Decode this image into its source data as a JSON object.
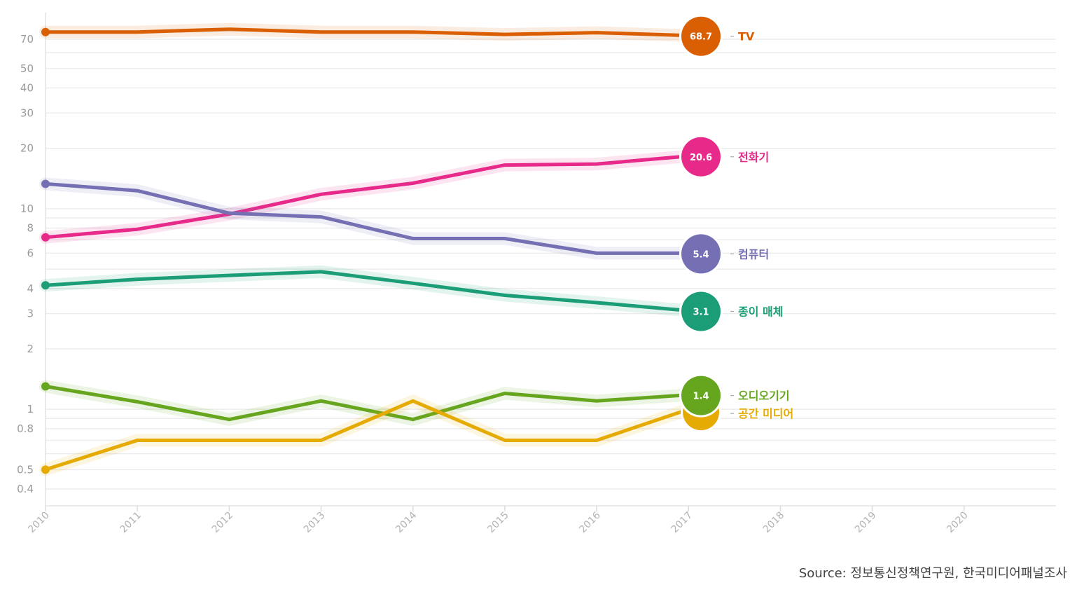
{
  "chart_data": {
    "type": "line",
    "title": "",
    "xlabel": "",
    "ylabel": "",
    "y_scale": "log",
    "ylim": [
      0.33,
      95
    ],
    "xlim": [
      2010,
      2021
    ],
    "grid": true,
    "y_ticks": [
      "70",
      "50",
      "40",
      "30",
      "20",
      "10",
      "8",
      "6",
      "4",
      "3",
      "2",
      "1",
      "0.8",
      "0.5",
      "0.4"
    ],
    "x_ticks": [
      "2010",
      "2011",
      "2012",
      "2013",
      "2014",
      "2015",
      "2016",
      "2017",
      "2018",
      "2019",
      "2020"
    ],
    "x": [
      2010,
      2011,
      2012,
      2013,
      2014,
      2015,
      2016,
      2017
    ],
    "series": [
      {
        "name": "TV",
        "color": "#d95f02",
        "values": [
          76.0,
          76.0,
          78.5,
          76.0,
          76.0,
          74.0,
          75.5,
          73.0
        ],
        "end_value": "68.7"
      },
      {
        "name": "전화기",
        "color": "#e7298a",
        "values": [
          7.2,
          7.9,
          9.4,
          11.8,
          13.4,
          16.5,
          16.7,
          18.3
        ],
        "end_value": "20.6"
      },
      {
        "name": "컴퓨터",
        "color": "#7570b3",
        "values": [
          13.3,
          12.3,
          9.5,
          9.1,
          7.1,
          7.1,
          6.0,
          6.0
        ],
        "end_value": "5.4"
      },
      {
        "name": "종이 매체",
        "color": "#1b9e77",
        "values": [
          4.15,
          4.45,
          4.65,
          4.85,
          4.25,
          3.7,
          3.4,
          3.1
        ],
        "end_value": "3.1"
      },
      {
        "name": "오디오기기",
        "color": "#66a61e",
        "values": [
          1.3,
          1.09,
          0.89,
          1.1,
          0.89,
          1.2,
          1.1,
          1.18
        ],
        "end_value": "1.4"
      },
      {
        "name": "공간 미디어",
        "color": "#e6ab02",
        "values": [
          0.5,
          0.7,
          0.7,
          0.7,
          1.1,
          0.7,
          0.7,
          1.0
        ],
        "end_value": ""
      }
    ]
  },
  "source_text": "Source: 정보통신정책연구원, 한국미디어패널조사"
}
